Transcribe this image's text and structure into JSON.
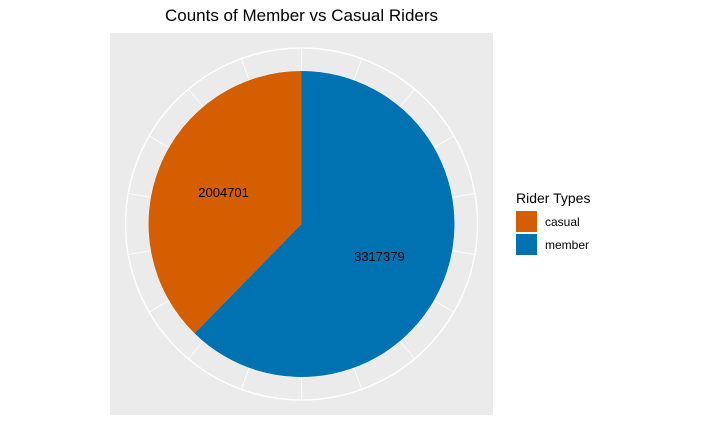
{
  "chart_data": {
    "type": "pie",
    "title": "Counts of Member vs Casual Riders",
    "legend_title": "Rider Types",
    "legend_position": "right",
    "slices": [
      {
        "label": "casual",
        "value": 2004701,
        "color": "#d55e00"
      },
      {
        "label": "member",
        "value": 3317379,
        "color": "#0072b2"
      }
    ],
    "data_labels": [
      "2004701",
      "3317379"
    ],
    "start": "top",
    "direction": "counterclockwise-from-member",
    "grid": true
  }
}
